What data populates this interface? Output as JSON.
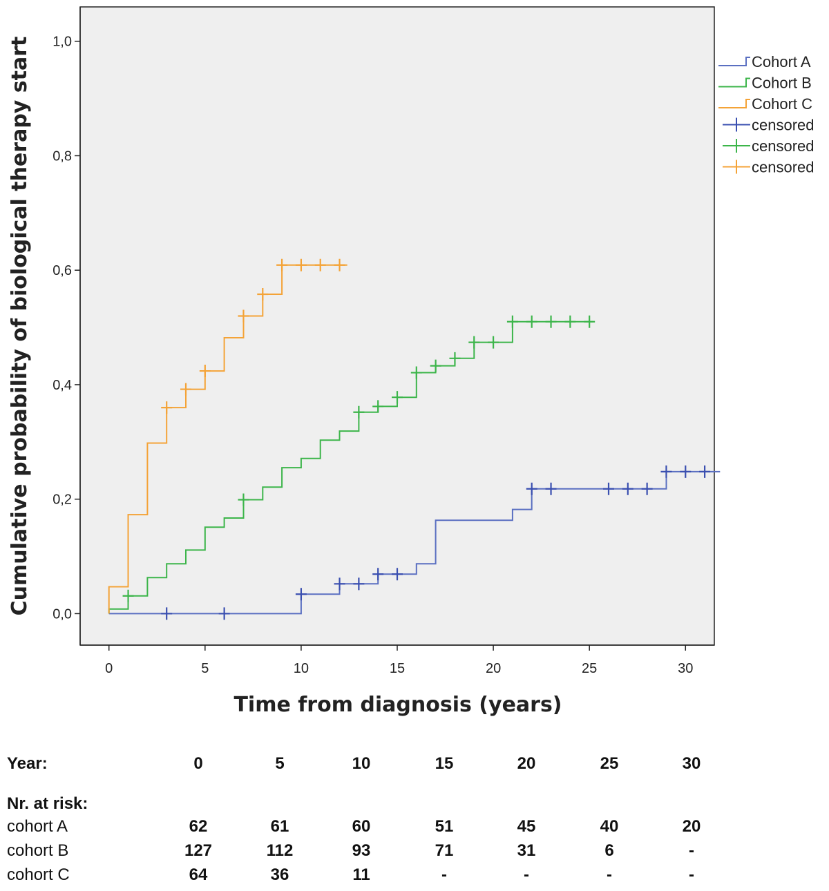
{
  "chart_data": {
    "type": "line",
    "subtype": "kaplan-meier-step",
    "xlabel": "Time from diagnosis (years)",
    "ylabel": "Cumulative probability of biological therapy start",
    "xlim": [
      -1.5,
      31.5
    ],
    "ylim": [
      -0.055,
      1.06
    ],
    "x_ticks": [
      "0",
      "5",
      "10",
      "15",
      "20",
      "25",
      "30"
    ],
    "y_ticks": [
      "0,0",
      "0,2",
      "0,4",
      "0,6",
      "0,8",
      "1,0"
    ],
    "legend_position": "right",
    "plot_background": "#efefef",
    "legend": [
      {
        "label": "Cohort A",
        "kind": "step",
        "color": "#5a6fc1"
      },
      {
        "label": "Cohort B",
        "kind": "step",
        "color": "#3cb54a"
      },
      {
        "label": "Cohort C",
        "kind": "step",
        "color": "#f4a337"
      },
      {
        "label": "censored",
        "kind": "censor",
        "color": "#3a4fb0"
      },
      {
        "label": "censored",
        "kind": "censor",
        "color": "#3cb54a"
      },
      {
        "label": "censored",
        "kind": "censor",
        "color": "#f4a337"
      }
    ],
    "series": [
      {
        "name": "Cohort A",
        "color": "#5a6fc1",
        "censor_color": "#3a4fb0",
        "steps": [
          [
            0,
            0.0
          ],
          [
            10,
            0.034
          ],
          [
            12,
            0.052
          ],
          [
            14,
            0.069
          ],
          [
            16,
            0.087
          ],
          [
            17,
            0.163
          ],
          [
            21,
            0.182
          ],
          [
            22,
            0.218
          ],
          [
            29,
            0.248
          ],
          [
            31.8,
            0.248
          ]
        ],
        "censored": [
          [
            3,
            0.0
          ],
          [
            6,
            0.0
          ],
          [
            10,
            0.034
          ],
          [
            12,
            0.052
          ],
          [
            13,
            0.052
          ],
          [
            14,
            0.069
          ],
          [
            15,
            0.069
          ],
          [
            22,
            0.218
          ],
          [
            23,
            0.218
          ],
          [
            26,
            0.218
          ],
          [
            27,
            0.218
          ],
          [
            28,
            0.218
          ],
          [
            29,
            0.248
          ],
          [
            30,
            0.248
          ],
          [
            31,
            0.248
          ]
        ]
      },
      {
        "name": "Cohort B",
        "color": "#3cb54a",
        "censor_color": "#3cb54a",
        "steps": [
          [
            0,
            0.008
          ],
          [
            1,
            0.031
          ],
          [
            2,
            0.063
          ],
          [
            3,
            0.087
          ],
          [
            4,
            0.111
          ],
          [
            5,
            0.151
          ],
          [
            6,
            0.167
          ],
          [
            7,
            0.199
          ],
          [
            8,
            0.221
          ],
          [
            9,
            0.255
          ],
          [
            10,
            0.271
          ],
          [
            11,
            0.303
          ],
          [
            12,
            0.319
          ],
          [
            13,
            0.352
          ],
          [
            14,
            0.362
          ],
          [
            15,
            0.378
          ],
          [
            16,
            0.421
          ],
          [
            17,
            0.433
          ],
          [
            18,
            0.446
          ],
          [
            19,
            0.474
          ],
          [
            21,
            0.51
          ],
          [
            25.2,
            0.51
          ]
        ],
        "censored": [
          [
            1,
            0.031
          ],
          [
            7,
            0.199
          ],
          [
            13,
            0.352
          ],
          [
            14,
            0.362
          ],
          [
            15,
            0.378
          ],
          [
            16,
            0.421
          ],
          [
            17,
            0.433
          ],
          [
            18,
            0.446
          ],
          [
            19,
            0.474
          ],
          [
            20,
            0.474
          ],
          [
            21,
            0.51
          ],
          [
            22,
            0.51
          ],
          [
            23,
            0.51
          ],
          [
            24,
            0.51
          ],
          [
            25,
            0.51
          ]
        ]
      },
      {
        "name": "Cohort C",
        "color": "#f4a337",
        "censor_color": "#f4a337",
        "steps": [
          [
            0,
            0.047
          ],
          [
            1,
            0.173
          ],
          [
            2,
            0.298
          ],
          [
            3,
            0.36
          ],
          [
            4,
            0.392
          ],
          [
            5,
            0.424
          ],
          [
            6,
            0.482
          ],
          [
            7,
            0.52
          ],
          [
            8,
            0.558
          ],
          [
            9,
            0.609
          ],
          [
            12.4,
            0.609
          ]
        ],
        "censored": [
          [
            3,
            0.36
          ],
          [
            4,
            0.392
          ],
          [
            5,
            0.424
          ],
          [
            7,
            0.52
          ],
          [
            8,
            0.558
          ],
          [
            9,
            0.609
          ],
          [
            10,
            0.609
          ],
          [
            11,
            0.609
          ],
          [
            12,
            0.609
          ]
        ]
      }
    ]
  },
  "risk_table": {
    "year_label": "Year:",
    "years": [
      "0",
      "5",
      "10",
      "15",
      "20",
      "25",
      "30"
    ],
    "at_risk_label": "Nr. at risk:",
    "rows": [
      {
        "label": "cohort A",
        "values": [
          "62",
          "61",
          "60",
          "51",
          "45",
          "40",
          "20"
        ]
      },
      {
        "label": "cohort B",
        "values": [
          "127",
          "112",
          "93",
          "71",
          "31",
          "6",
          "-"
        ]
      },
      {
        "label": "cohort C",
        "values": [
          "64",
          "36",
          "11",
          "-",
          "-",
          "-",
          "-"
        ]
      }
    ]
  }
}
